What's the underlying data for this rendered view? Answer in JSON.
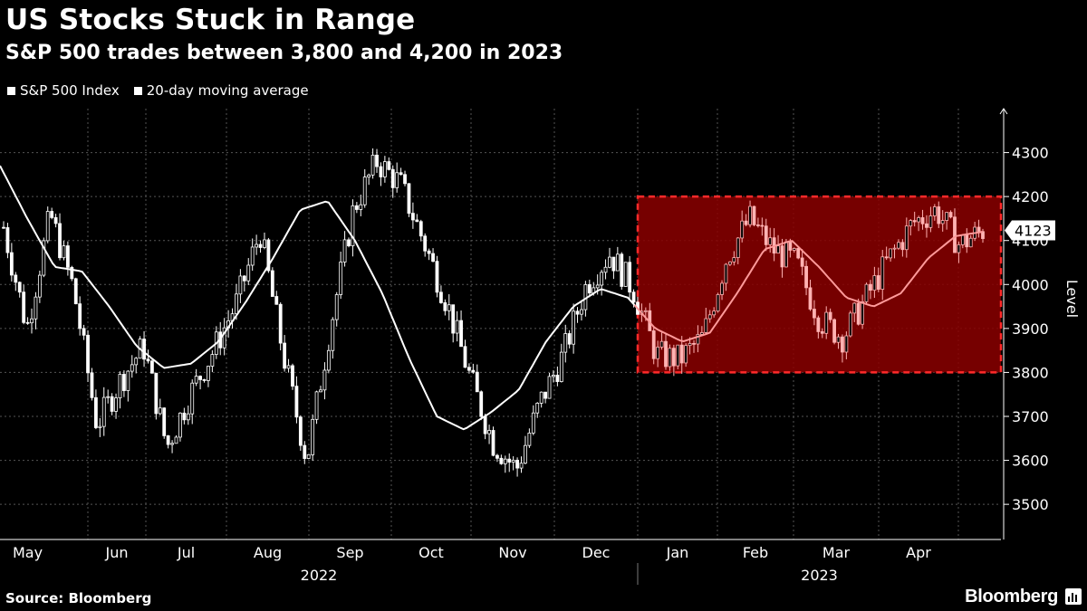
{
  "chart_data": {
    "type": "line",
    "title": "US Stocks Stuck in Range",
    "subtitle": "S&P 500 trades between 3,800 and 4,200 in 2023",
    "ylabel": "Level",
    "ylim": [
      3420,
      4400
    ],
    "y_ticks": [
      "3500",
      "3600",
      "3700",
      "3800",
      "3900",
      "4000",
      "4100",
      "4200",
      "4300"
    ],
    "x_month_labels": [
      "May",
      "Jun",
      "Jul",
      "Aug",
      "Sep",
      "Oct",
      "Nov",
      "Dec",
      "Jan",
      "Feb",
      "Mar",
      "Apr"
    ],
    "x_year_labels": [
      "2022",
      "2023"
    ],
    "last_value_label": "4123",
    "grid": true,
    "legend_position": "top-left",
    "highlight_range": {
      "from": "2023-01",
      "ymin": 3800,
      "ymax": 4200,
      "color": "#8b0000"
    },
    "series": [
      {
        "name": "S&P 500 Index",
        "color": "#ffffff",
        "style": "candlestick",
        "monthly_path": [
          4130,
          3900,
          4160,
          3990,
          3680,
          3780,
          3860,
          3630,
          3750,
          3850,
          3960,
          4120,
          3840,
          3600,
          3900,
          4170,
          4280,
          4230,
          4100,
          3960,
          3790,
          3640,
          3580,
          3730,
          3840,
          4000,
          4070,
          3990,
          3840,
          3830,
          3880,
          4060,
          4150,
          4080,
          4050,
          3920,
          3880,
          3970,
          4060,
          4140,
          4170,
          4090,
          4123
        ]
      },
      {
        "name": "20-day moving average",
        "color": "#ffffff",
        "highlight_color": "#ff9a9a",
        "monthly_path": [
          4270,
          4150,
          4040,
          4030,
          3950,
          3860,
          3810,
          3820,
          3870,
          3960,
          4060,
          4170,
          4190,
          4100,
          3980,
          3830,
          3700,
          3670,
          3710,
          3760,
          3870,
          3950,
          3990,
          3970,
          3900,
          3870,
          3890,
          3980,
          4080,
          4100,
          4040,
          3970,
          3950,
          3980,
          4060,
          4110,
          4120
        ]
      }
    ]
  },
  "source": "Source: Bloomberg",
  "brand": "Bloomberg"
}
